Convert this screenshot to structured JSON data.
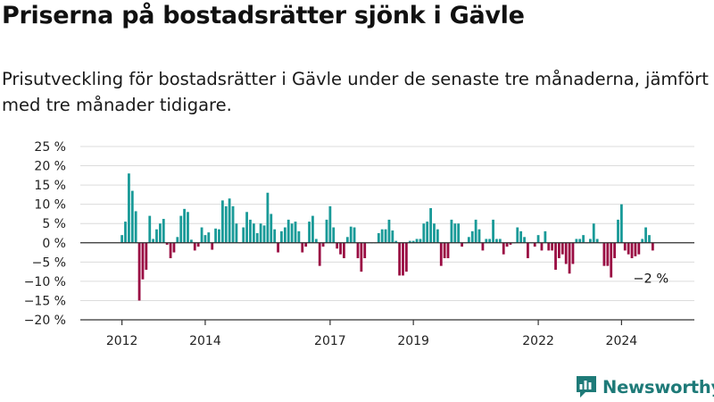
{
  "title": "Priserna på bostadsrätter sjönk i Gävle",
  "subtitle": "Prisutveckling för bostadsrätter i Gävle under de senaste tre månaderna, jämfört med tre månader tidigare.",
  "brand": "Newsworthy",
  "colors": {
    "positive": "#199a98",
    "negative": "#9a0c43",
    "grid": "#dcdcdc",
    "axis": "#333333",
    "brand": "#1e7a78"
  },
  "chart_data": {
    "type": "bar",
    "title": "Priserna på bostadsrätter sjönk i Gävle",
    "xlabel": "",
    "ylabel": "",
    "ylim": [
      -20,
      25
    ],
    "y_ticks": [
      -20,
      -15,
      -10,
      -5,
      0,
      5,
      10,
      15,
      20,
      25
    ],
    "y_tick_labels": [
      "−20 %",
      "−15 %",
      "−10 %",
      "−5 %",
      "0 %",
      "5 %",
      "10 %",
      "15 %",
      "20 %",
      "25 %"
    ],
    "x_range": [
      2011.0,
      2025.75
    ],
    "x_ticks": [
      2012,
      2014,
      2017,
      2019,
      2022,
      2024
    ],
    "x_tick_labels": [
      "2012",
      "2014",
      "2017",
      "2019",
      "2022",
      "2024"
    ],
    "annotation": {
      "label": "−2 %",
      "x": 2024.75,
      "value": -2
    },
    "grid": true,
    "period": "monthly",
    "x": [
      2012.0,
      2012.083,
      2012.167,
      2012.25,
      2012.333,
      2012.417,
      2012.5,
      2012.583,
      2012.667,
      2012.75,
      2012.833,
      2012.917,
      2013.0,
      2013.083,
      2013.167,
      2013.25,
      2013.333,
      2013.417,
      2013.5,
      2013.583,
      2013.667,
      2013.75,
      2013.833,
      2013.917,
      2014.0,
      2014.083,
      2014.167,
      2014.25,
      2014.333,
      2014.417,
      2014.5,
      2014.583,
      2014.667,
      2014.75,
      2014.833,
      2014.917,
      2015.0,
      2015.083,
      2015.167,
      2015.25,
      2015.333,
      2015.417,
      2015.5,
      2015.583,
      2015.667,
      2015.75,
      2015.833,
      2015.917,
      2016.0,
      2016.083,
      2016.167,
      2016.25,
      2016.333,
      2016.417,
      2016.5,
      2016.583,
      2016.667,
      2016.75,
      2016.833,
      2016.917,
      2017.0,
      2017.083,
      2017.167,
      2017.25,
      2017.333,
      2017.417,
      2017.5,
      2017.583,
      2017.667,
      2017.75,
      2017.833,
      2017.917,
      2018.0,
      2018.083,
      2018.167,
      2018.25,
      2018.333,
      2018.417,
      2018.5,
      2018.583,
      2018.667,
      2018.75,
      2018.833,
      2018.917,
      2019.0,
      2019.083,
      2019.167,
      2019.25,
      2019.333,
      2019.417,
      2019.5,
      2019.583,
      2019.667,
      2019.75,
      2019.833,
      2019.917,
      2020.0,
      2020.083,
      2020.167,
      2020.25,
      2020.333,
      2020.417,
      2020.5,
      2020.583,
      2020.667,
      2020.75,
      2020.833,
      2020.917,
      2021.0,
      2021.083,
      2021.167,
      2021.25,
      2021.333,
      2021.417,
      2021.5,
      2021.583,
      2021.667,
      2021.75,
      2021.833,
      2021.917,
      2022.0,
      2022.083,
      2022.167,
      2022.25,
      2022.333,
      2022.417,
      2022.5,
      2022.583,
      2022.667,
      2022.75,
      2022.833,
      2022.917,
      2023.0,
      2023.083,
      2023.167,
      2023.25,
      2023.333,
      2023.417,
      2023.5,
      2023.583,
      2023.667,
      2023.75,
      2023.833,
      2023.917,
      2024.0,
      2024.083,
      2024.167,
      2024.25,
      2024.333,
      2024.417,
      2024.5,
      2024.583,
      2024.667,
      2024.75
    ],
    "values": [
      2,
      5.5,
      18,
      13.5,
      8.2,
      -15,
      -9.5,
      -7,
      7,
      1,
      3.5,
      5,
      6.2,
      -0.5,
      -4,
      -2.5,
      1.5,
      7,
      8.8,
      8,
      0.8,
      -2,
      -1,
      4,
      2,
      2.7,
      -1.8,
      3.7,
      3.5,
      11,
      9.5,
      11.5,
      9.5,
      5,
      0,
      4,
      8,
      6,
      5,
      2.5,
      5,
      4.5,
      13,
      7.5,
      3.5,
      -2.5,
      3,
      4,
      6,
      5,
      5.5,
      3,
      -2.5,
      -1,
      5.5,
      7,
      1,
      -6,
      -1,
      6,
      9.5,
      4,
      -1.5,
      -3,
      -4,
      1.5,
      4.2,
      4,
      -4,
      -7.5,
      -4,
      0,
      0,
      0,
      2.5,
      3.5,
      3.5,
      6,
      3.2,
      0.5,
      -8.5,
      -8.5,
      -7.5,
      0.5,
      0.5,
      1,
      1,
      5,
      5.5,
      9,
      5,
      3.5,
      -6,
      -4,
      -4,
      6,
      5,
      5,
      -1,
      0,
      1.5,
      3,
      6,
      3.5,
      -2,
      1,
      1,
      6,
      1,
      1,
      -3,
      -1,
      -0.5,
      0,
      4,
      3,
      1.5,
      -4,
      0,
      -1,
      2,
      -2,
      3,
      -2,
      -2,
      -7,
      -4,
      -3,
      -5.5,
      -8,
      -5.5,
      1,
      1,
      2,
      0,
      1,
      5,
      1,
      0,
      -6,
      -6,
      -9,
      -4,
      6,
      10,
      -2,
      -3,
      -4,
      -3.5,
      -3,
      1,
      4,
      2,
      -2
    ]
  }
}
